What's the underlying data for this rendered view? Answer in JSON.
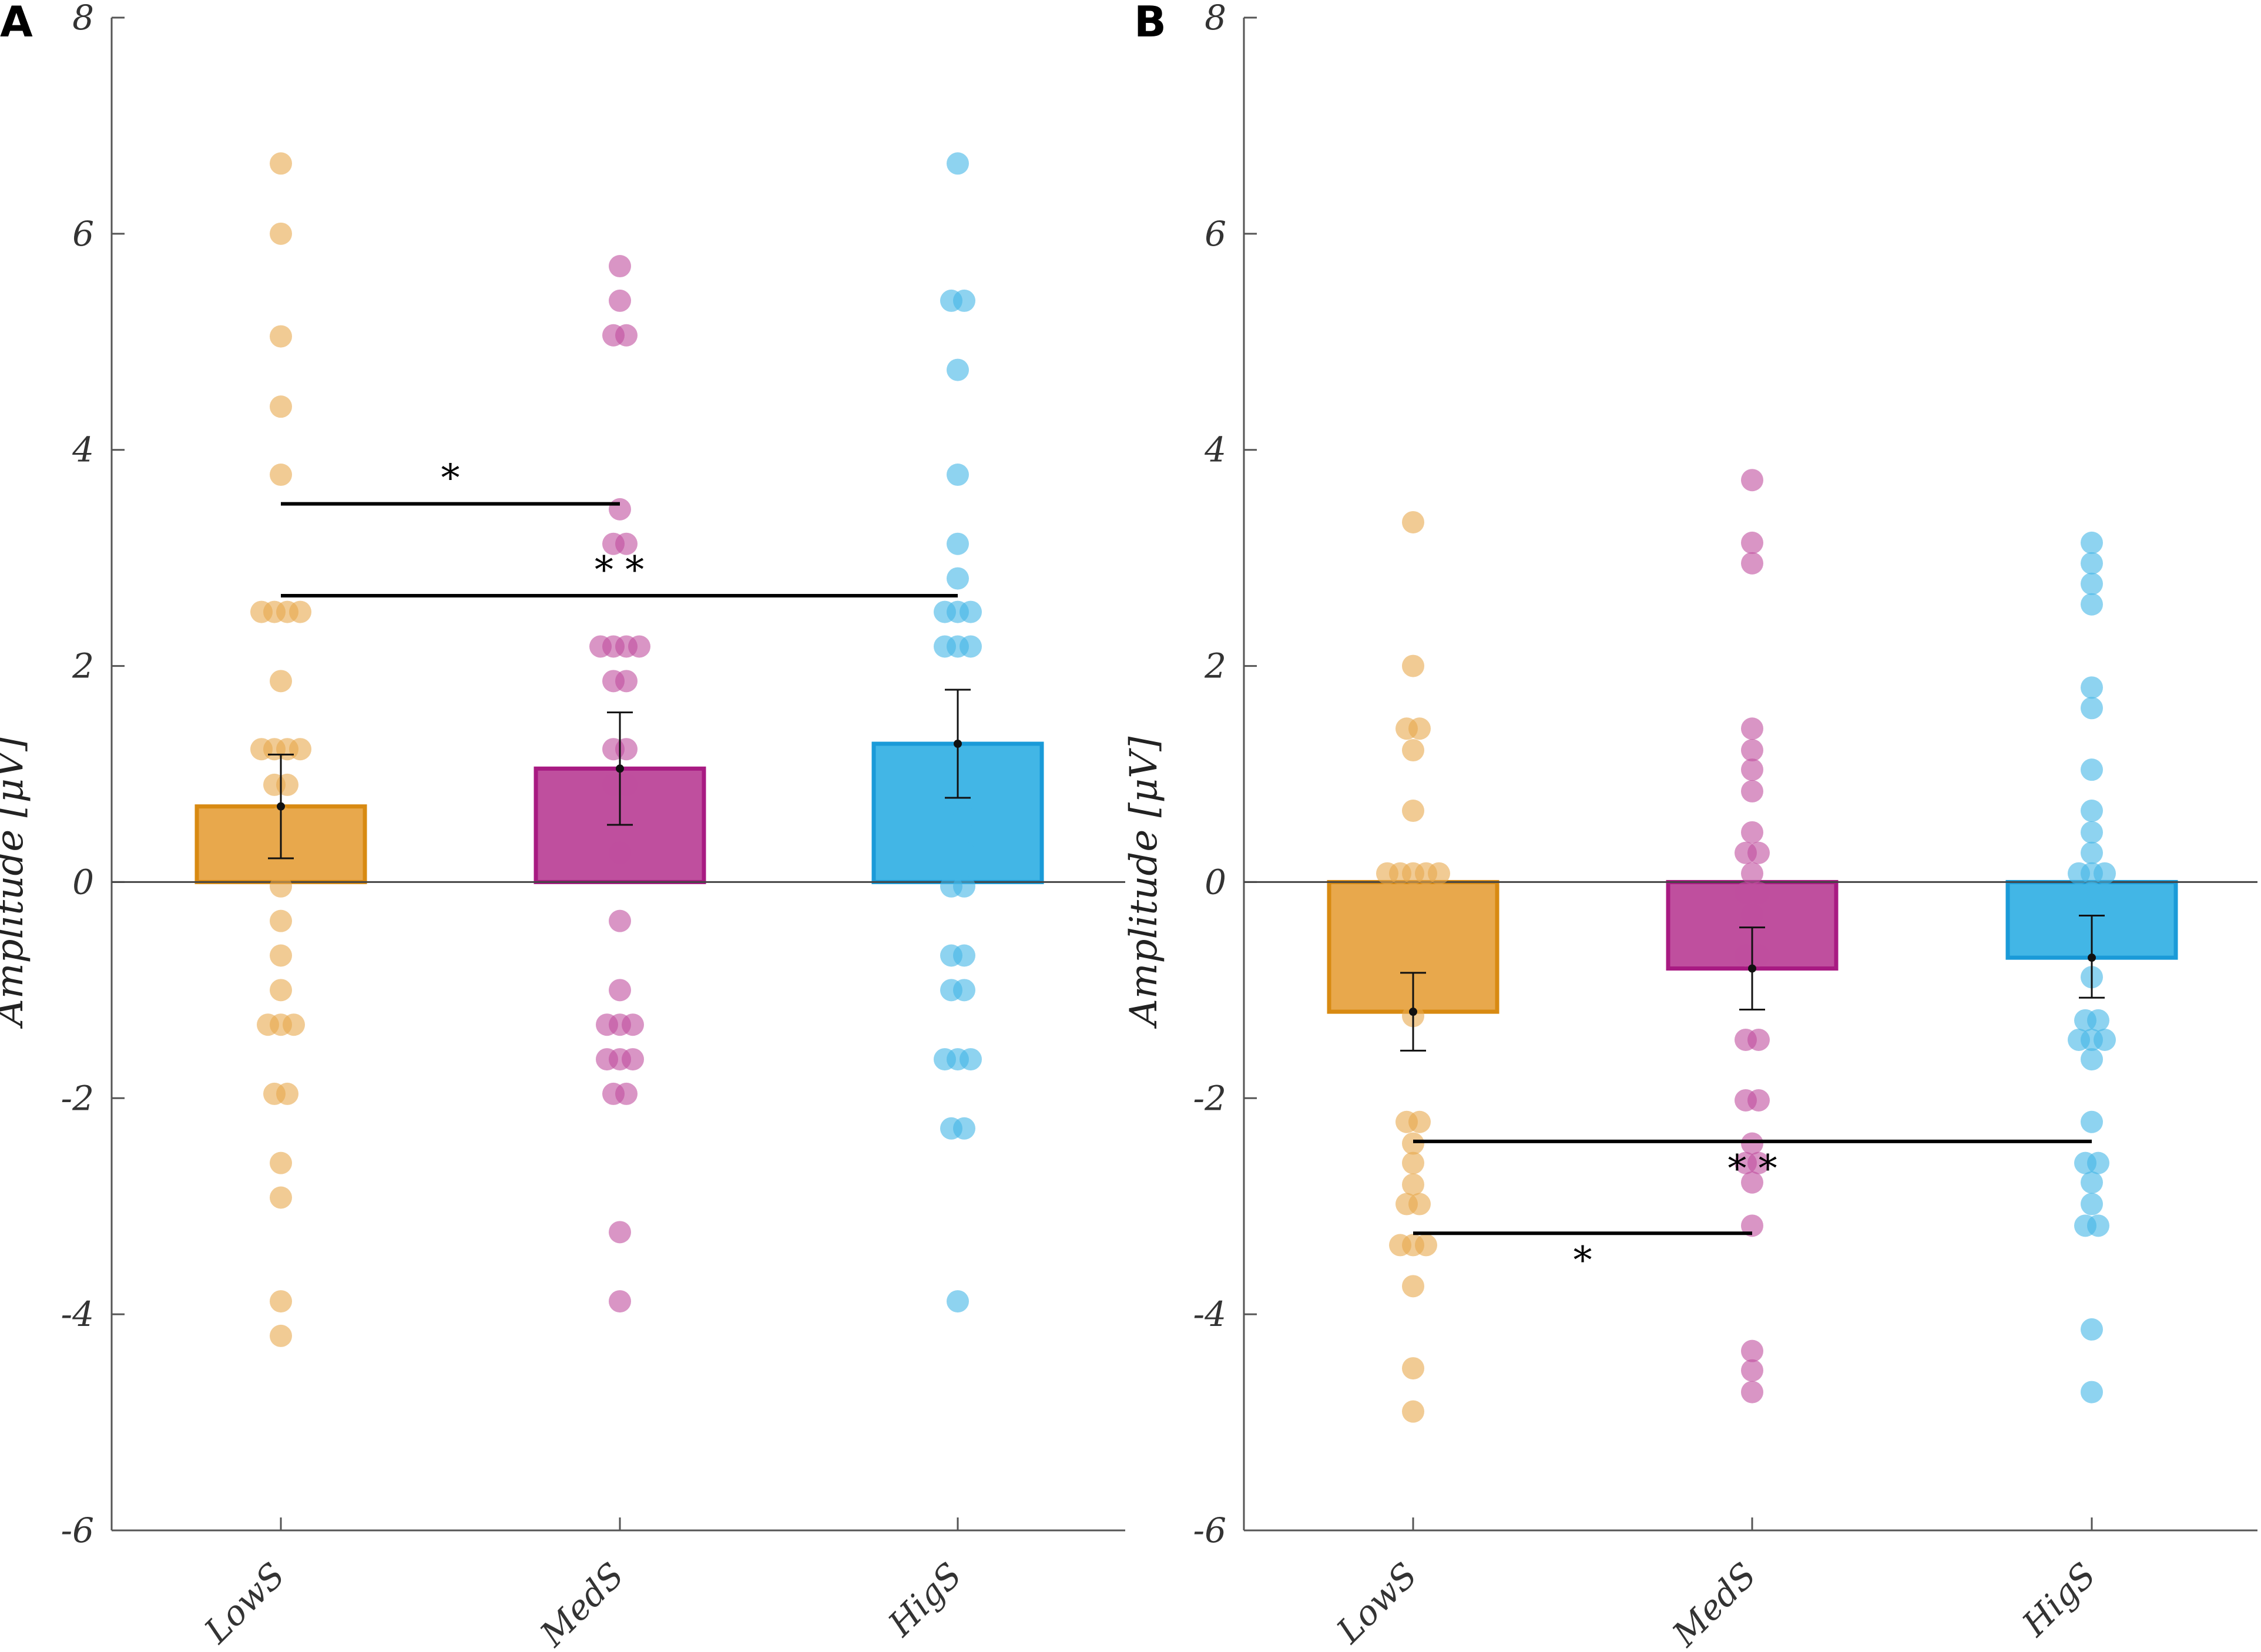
{
  "colors": {
    "low": "#E8A84C",
    "low_edge": "#D88A12",
    "med": "#BF4F9E",
    "med_edge": "#A81A82",
    "hig": "#42B6E6",
    "hig_edge": "#1A9AD8",
    "axis": "#555555",
    "text": "#333333"
  },
  "chart_data": [
    {
      "type": "bar",
      "panel": "A",
      "categories": [
        "LowS",
        "MedS",
        "HigS"
      ],
      "ylabel": "Amplitude [μV]",
      "ylim": [
        -6,
        8
      ],
      "yticks": [
        -6,
        -4,
        -2,
        0,
        2,
        4,
        6,
        8
      ],
      "ytick_labels": [
        "-6",
        "-4",
        "-2",
        "0",
        "2",
        "4",
        "6",
        "8"
      ],
      "values": [
        0.7,
        1.05,
        1.28
      ],
      "errors": [
        [
          0.22,
          1.18
        ],
        [
          0.53,
          1.57
        ],
        [
          0.78,
          1.78
        ]
      ],
      "points": [
        [
          6.65,
          6.0,
          5.05,
          4.4,
          3.77,
          2.5,
          2.5,
          2.5,
          2.5,
          1.86,
          1.23,
          1.23,
          1.23,
          1.23,
          0.9,
          0.9,
          0.6,
          0.28,
          -0.04,
          -0.36,
          -0.68,
          -1.0,
          -1.32,
          -1.32,
          -1.32,
          -1.96,
          -1.96,
          -2.6,
          -2.92,
          -3.88,
          -4.2
        ],
        [
          5.7,
          5.38,
          5.06,
          5.06,
          3.45,
          3.13,
          3.13,
          2.18,
          2.18,
          2.18,
          2.18,
          1.86,
          1.86,
          1.23,
          1.23,
          0.9,
          0.9,
          0.27,
          -0.36,
          -1.0,
          -1.32,
          -1.32,
          -1.32,
          -1.64,
          -1.64,
          -1.64,
          -1.96,
          -1.96,
          -3.24,
          -3.88
        ],
        [
          6.65,
          5.38,
          5.38,
          4.74,
          3.77,
          3.13,
          2.81,
          2.5,
          2.5,
          2.5,
          2.18,
          2.18,
          2.18,
          0.9,
          0.6,
          0.6,
          0.27,
          0.27,
          -0.04,
          -0.04,
          -0.68,
          -0.68,
          -1.0,
          -1.0,
          -1.64,
          -1.64,
          -1.64,
          -2.28,
          -2.28,
          -3.88
        ]
      ],
      "significance": [
        {
          "from": 0,
          "to": 1,
          "y": 3.5,
          "label": "*"
        },
        {
          "from": 0,
          "to": 2,
          "y": 2.65,
          "label": "* *"
        }
      ]
    },
    {
      "type": "bar",
      "panel": "B",
      "categories": [
        "LowS",
        "MedS",
        "HigS"
      ],
      "ylabel": "Amplitude [μV]",
      "ylim": [
        -6,
        8
      ],
      "yticks": [
        -6,
        -4,
        -2,
        0,
        2,
        4,
        6,
        8
      ],
      "ytick_labels": [
        "-6",
        "-4",
        "-2",
        "0",
        "2",
        "4",
        "6",
        "8"
      ],
      "values": [
        -1.2,
        -0.8,
        -0.7
      ],
      "errors": [
        [
          -1.56,
          -0.84
        ],
        [
          -1.18,
          -0.42
        ],
        [
          -1.07,
          -0.31
        ]
      ],
      "points": [
        [
          3.33,
          2.0,
          1.42,
          1.42,
          1.22,
          0.66,
          0.08,
          0.08,
          0.08,
          0.08,
          0.08,
          -0.5,
          -0.5,
          -0.68,
          -0.68,
          -1.24,
          -2.22,
          -2.22,
          -2.42,
          -2.6,
          -2.8,
          -2.98,
          -2.98,
          -3.36,
          -3.36,
          -3.36,
          -3.74,
          -4.5,
          -4.9
        ],
        [
          3.72,
          3.14,
          2.95,
          1.42,
          1.22,
          1.04,
          0.84,
          0.46,
          0.27,
          0.27,
          0.08,
          -0.1,
          -0.1,
          -0.3,
          -0.68,
          -0.68,
          -1.46,
          -1.46,
          -2.02,
          -2.02,
          -2.42,
          -2.6,
          -2.6,
          -2.78,
          -3.18,
          -4.34,
          -4.52,
          -4.72
        ],
        [
          3.14,
          2.95,
          2.76,
          2.57,
          1.8,
          1.61,
          1.04,
          0.66,
          0.46,
          0.27,
          0.08,
          0.08,
          0.08,
          -0.1,
          -0.3,
          -0.88,
          -1.28,
          -1.28,
          -1.46,
          -1.46,
          -1.46,
          -1.64,
          -2.22,
          -2.6,
          -2.6,
          -2.78,
          -2.98,
          -3.18,
          -3.18,
          -4.14,
          -4.72
        ]
      ],
      "significance": [
        {
          "from": 0,
          "to": 2,
          "y": -2.4,
          "label": "* *"
        },
        {
          "from": 0,
          "to": 1,
          "y": -3.25,
          "label": "*"
        }
      ]
    }
  ]
}
